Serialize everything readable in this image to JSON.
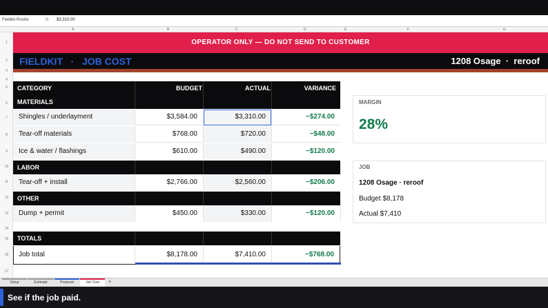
{
  "formula_bar": {
    "name_box": "Fieldkit-Roofer",
    "fx": "fx",
    "value": "$3,310.00"
  },
  "columns": [
    "A",
    "B",
    "C",
    "D",
    "E",
    "F",
    "G"
  ],
  "rows": [
    "1",
    "2",
    "3",
    "4",
    "5",
    "6",
    "7",
    "8",
    "9",
    "10",
    "11",
    "12",
    "13",
    "14",
    "15",
    "16",
    "17"
  ],
  "banner": "OPERATOR ONLY  —  DO NOT SEND TO CUSTOMER",
  "title": {
    "brand": "FIELDKIT   ·   JOB COST",
    "job": "1208 Osage  ·  reroof"
  },
  "table": {
    "headers": [
      "CATEGORY",
      "BUDGET",
      "ACTUAL",
      "VARIANCE"
    ],
    "sections": {
      "materials": "MATERIALS",
      "labor": "LABOR",
      "other": "OTHER",
      "totals": "TOTALS"
    },
    "lines": [
      {
        "name": "Shingles / underlayment",
        "budget": "$3,584.00",
        "actual": "$3,310.00",
        "variance": "−$274.00"
      },
      {
        "name": "Tear-off materials",
        "budget": "$768.00",
        "actual": "$720.00",
        "variance": "−$48.00"
      },
      {
        "name": "Ice & water / flashings",
        "budget": "$610.00",
        "actual": "$490.00",
        "variance": "−$120.00"
      },
      {
        "name": "Tear-off + install",
        "budget": "$2,766.00",
        "actual": "$2,560.00",
        "variance": "−$206.00"
      },
      {
        "name": "Dump + permit",
        "budget": "$450.00",
        "actual": "$330.00",
        "variance": "−$120.00"
      }
    ],
    "total": {
      "name": "Job total",
      "budget": "$8,178.00",
      "actual": "$7,410.00",
      "variance": "−$768.00"
    }
  },
  "margin_card": {
    "label": "MARGIN",
    "value": "28%"
  },
  "job_card": {
    "label": "JOB",
    "name": "1208 Osage · reroof",
    "budget": "Budget $8,178",
    "actual": "Actual $7,410"
  },
  "tabs": [
    {
      "label": "Setup",
      "color": "#9e9e9e"
    },
    {
      "label": "Estimate",
      "color": "#9e9e9e"
    },
    {
      "label": "Proposal",
      "color": "#2f62d8"
    },
    {
      "label": "Job Cost",
      "color": "#e0204a"
    }
  ],
  "add_tab": "+",
  "caption": "See if the job paid.",
  "colors": {
    "accent": "#e0204a",
    "brand": "#2f62d8",
    "positive": "#137a4c"
  }
}
